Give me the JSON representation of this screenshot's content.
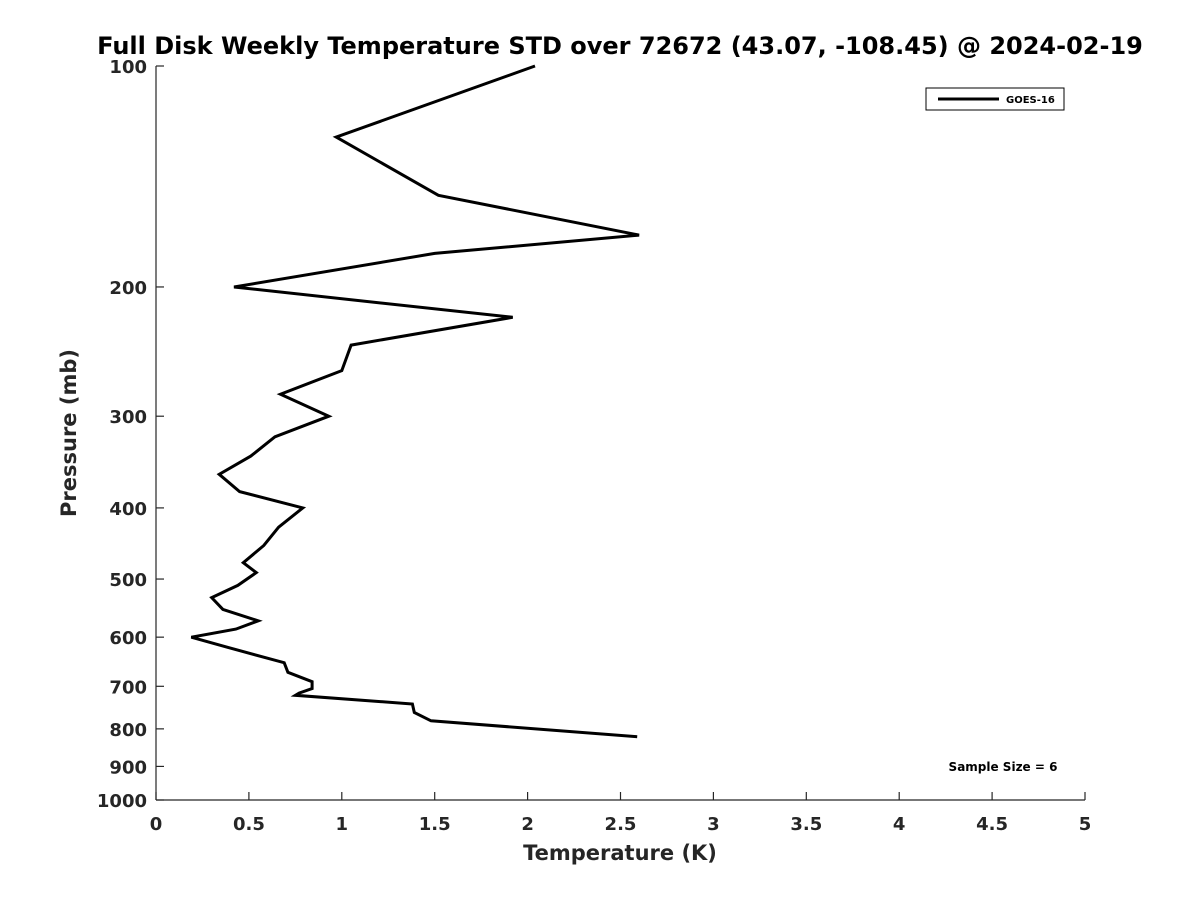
{
  "chart_data": {
    "type": "line",
    "title": "Full Disk Weekly Temperature STD over 72672 (43.07, -108.45) @ 2024-02-19",
    "xlabel": "Temperature (K)",
    "ylabel": "Pressure (mb)",
    "xlim": [
      0,
      5
    ],
    "ylim": [
      100,
      1000
    ],
    "y_scale": "log",
    "y_reversed": true,
    "x_ticks": [
      0,
      0.5,
      1,
      1.5,
      2,
      2.5,
      3,
      3.5,
      4,
      4.5,
      5
    ],
    "x_tick_labels": [
      "0",
      "0.5",
      "1",
      "1.5",
      "2",
      "2.5",
      "3",
      "3.5",
      "4",
      "4.5",
      "5"
    ],
    "y_ticks": [
      100,
      200,
      300,
      400,
      500,
      600,
      700,
      800,
      900,
      1000
    ],
    "y_tick_labels": [
      "100",
      "200",
      "300",
      "400",
      "500",
      "600",
      "700",
      "800",
      "900",
      "1000"
    ],
    "grid": false,
    "legend_position": "top-right",
    "series": [
      {
        "name": "GOES-16",
        "color": "#000000",
        "points": [
          {
            "x": 2.04,
            "p": 100
          },
          {
            "x": 0.97,
            "p": 125
          },
          {
            "x": 1.52,
            "p": 150
          },
          {
            "x": 2.6,
            "p": 170
          },
          {
            "x": 1.5,
            "p": 180
          },
          {
            "x": 0.42,
            "p": 200
          },
          {
            "x": 1.92,
            "p": 220
          },
          {
            "x": 1.05,
            "p": 240
          },
          {
            "x": 1.0,
            "p": 260
          },
          {
            "x": 0.67,
            "p": 280
          },
          {
            "x": 0.93,
            "p": 300
          },
          {
            "x": 0.64,
            "p": 320
          },
          {
            "x": 0.51,
            "p": 340
          },
          {
            "x": 0.34,
            "p": 360
          },
          {
            "x": 0.45,
            "p": 380
          },
          {
            "x": 0.79,
            "p": 400
          },
          {
            "x": 0.66,
            "p": 425
          },
          {
            "x": 0.58,
            "p": 450
          },
          {
            "x": 0.47,
            "p": 475
          },
          {
            "x": 0.54,
            "p": 490
          },
          {
            "x": 0.44,
            "p": 510
          },
          {
            "x": 0.3,
            "p": 530
          },
          {
            "x": 0.36,
            "p": 550
          },
          {
            "x": 0.55,
            "p": 570
          },
          {
            "x": 0.43,
            "p": 585
          },
          {
            "x": 0.19,
            "p": 600
          },
          {
            "x": 0.39,
            "p": 620
          },
          {
            "x": 0.69,
            "p": 650
          },
          {
            "x": 0.71,
            "p": 670
          },
          {
            "x": 0.84,
            "p": 690
          },
          {
            "x": 0.84,
            "p": 705
          },
          {
            "x": 0.77,
            "p": 715
          },
          {
            "x": 0.75,
            "p": 720
          },
          {
            "x": 1.38,
            "p": 740
          },
          {
            "x": 1.39,
            "p": 760
          },
          {
            "x": 1.48,
            "p": 780
          },
          {
            "x": 2.59,
            "p": 820
          }
        ]
      }
    ],
    "annotations": [
      {
        "text": "Sample Size = 6",
        "position": "bottom-right"
      }
    ]
  }
}
